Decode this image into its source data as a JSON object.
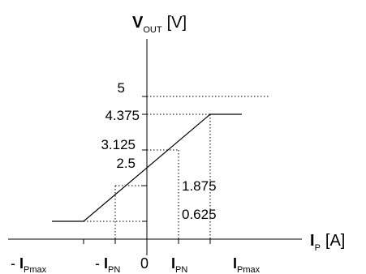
{
  "chart_data": {
    "type": "line",
    "x_ticks": [
      {
        "key": "neg_ipmax",
        "prefix": "- ",
        "main": "I",
        "sub": "Pmax",
        "x": -2
      },
      {
        "key": "neg_ipn",
        "prefix": "- ",
        "main": "I",
        "sub": "PN",
        "x": -1
      },
      {
        "key": "zero",
        "prefix": "",
        "main": "0",
        "sub": "",
        "x": 0
      },
      {
        "key": "ipn",
        "prefix": "",
        "main": "I",
        "sub": "PN",
        "x": 1
      },
      {
        "key": "ipmax",
        "prefix": "",
        "main": "I",
        "sub": "Pmax",
        "x": 2
      }
    ],
    "y_ticks_left": [
      "5",
      "4.375",
      "3.125",
      "2.5"
    ],
    "y_ticks_inner": [
      "1.875",
      "0.625"
    ],
    "levels": {
      "5": 5,
      "4.375": 4.375,
      "3.125": 3.125,
      "2.5": 2.5,
      "1.875": 1.875,
      "0.625": 0.625
    },
    "series": [
      {
        "values": [
          {
            "x": -3,
            "y": 0.625
          },
          {
            "x": -2,
            "y": 0.625
          },
          {
            "x": 2,
            "y": 4.375
          },
          {
            "x": 3,
            "y": 4.375
          }
        ]
      }
    ],
    "xlabel": {
      "main": "I",
      "sub": "P",
      "unit": "[A]"
    },
    "ylabel": {
      "main": "V",
      "sub": "OUT",
      "unit": "[V]"
    },
    "xlim": [
      -3,
      3
    ],
    "ylim": [
      0,
      5
    ],
    "grid": false
  }
}
